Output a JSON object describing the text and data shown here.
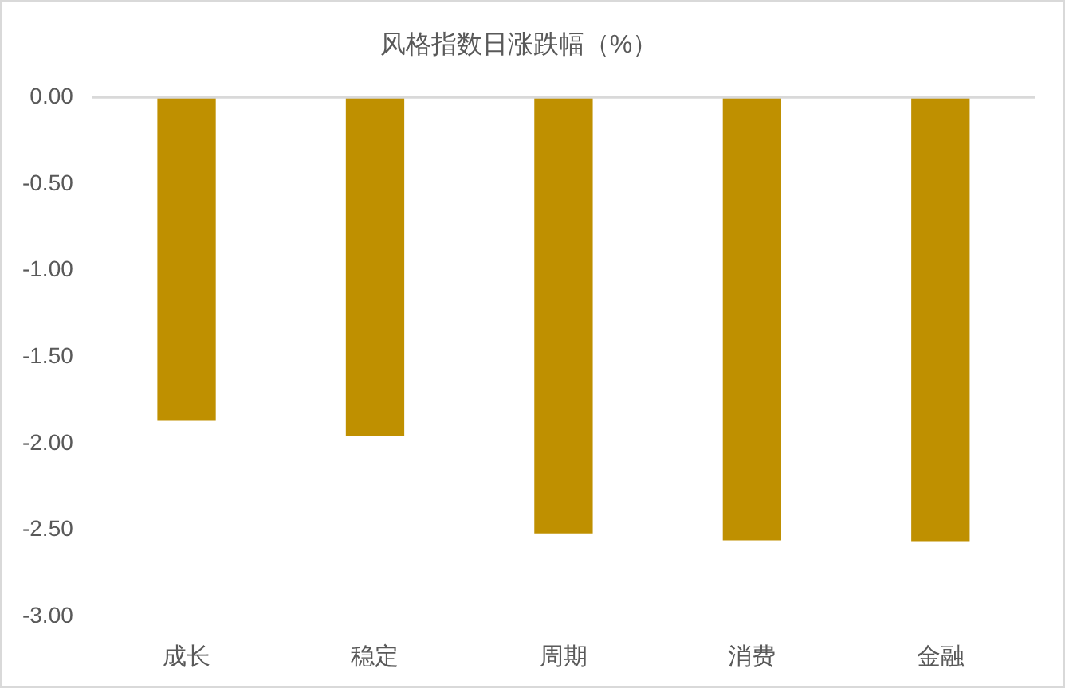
{
  "chart_data": {
    "type": "bar",
    "title": "风格指数日涨跌幅（%）",
    "categories": [
      "成长",
      "稳定",
      "周期",
      "消费",
      "金融"
    ],
    "values": [
      -1.87,
      -1.96,
      -2.52,
      -2.56,
      -2.57
    ],
    "color": "#bf9000",
    "ylim": [
      -3,
      0
    ],
    "yticks": [
      {
        "value": -3,
        "label": "-3.00"
      },
      {
        "value": -2.5,
        "label": "-2.50"
      },
      {
        "value": -2,
        "label": "-2.00"
      },
      {
        "value": -1.5,
        "label": "-1.50"
      },
      {
        "value": -1,
        "label": "-1.00"
      },
      {
        "value": -0.5,
        "label": "-0.50"
      },
      {
        "value": 0,
        "label": "0.00"
      }
    ]
  }
}
